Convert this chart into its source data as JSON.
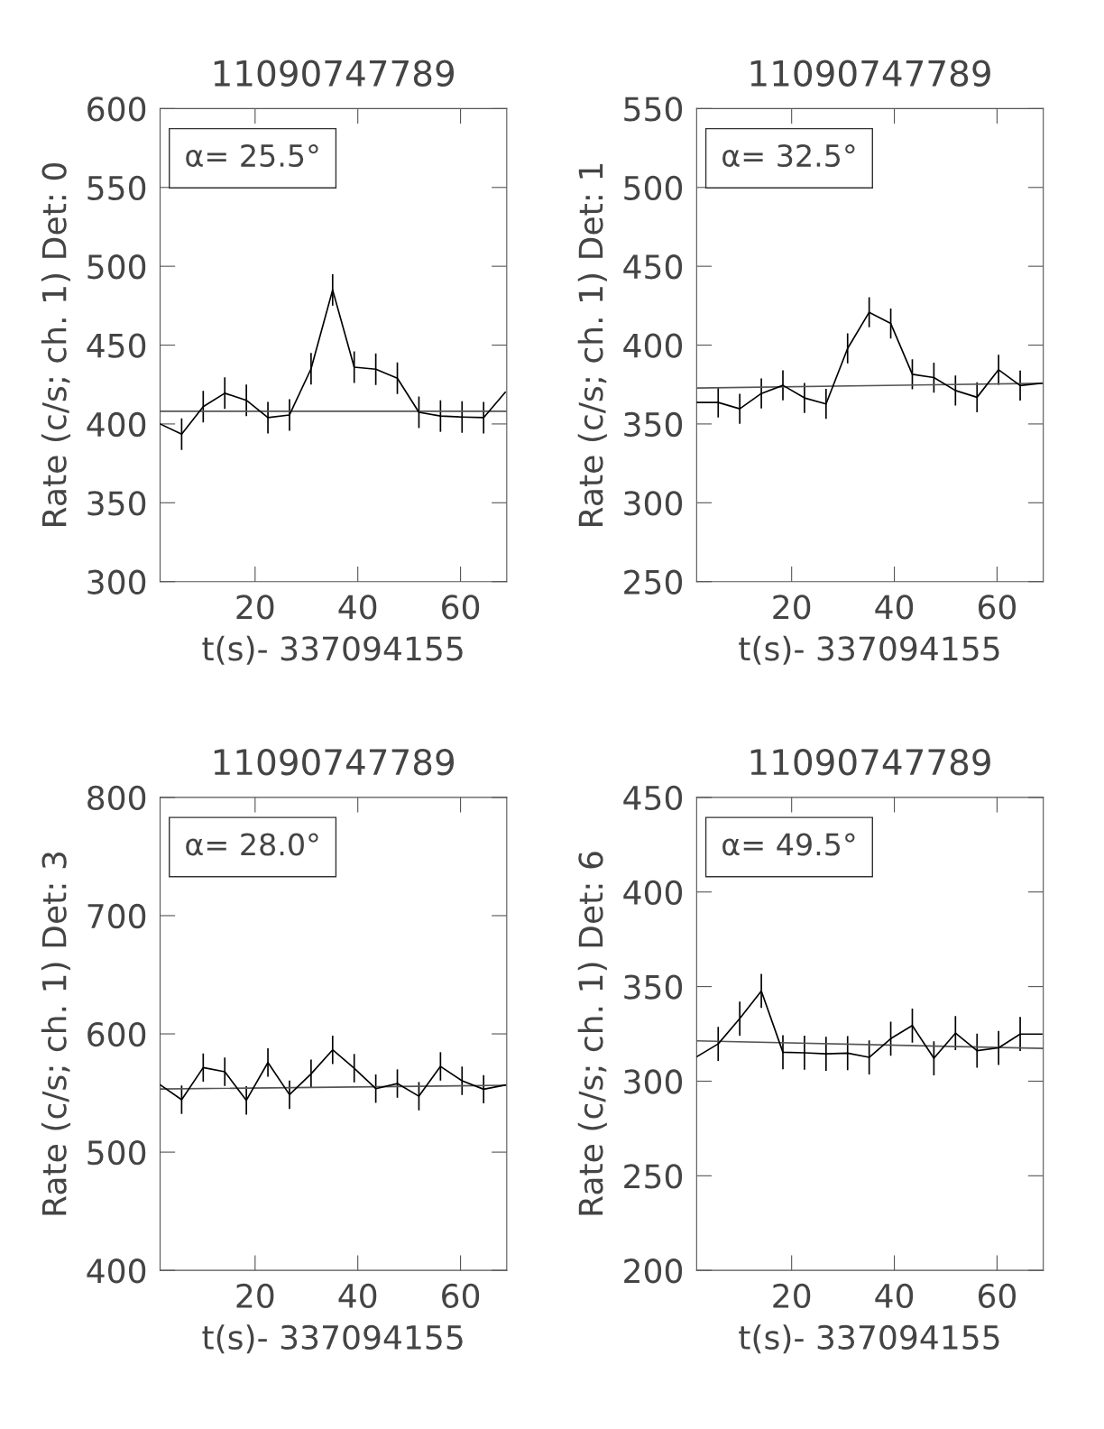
{
  "chart_data": [
    {
      "type": "line",
      "title": "11090747789",
      "xlabel": "t(s)- 337094155",
      "ylabel": "Rate (c/s; ch. 1) Det: 0",
      "annotations": [
        "α= 25.5°"
      ],
      "xlim": [
        1.5,
        69
      ],
      "xticks": [
        20,
        40,
        60
      ],
      "ylim": [
        300,
        600
      ],
      "yticks": [
        300,
        350,
        400,
        450,
        500,
        550,
        600
      ],
      "grid": false,
      "marker": "none",
      "line_style": "solid",
      "series": [
        {
          "color": "#000000",
          "x": [
            1.5,
            5.7,
            9.9,
            14.1,
            18.3,
            22.5,
            26.7,
            30.9,
            35.1,
            39.3,
            43.5,
            47.7,
            51.9,
            56.1,
            60.3,
            64.5,
            68.7
          ],
          "values": [
            400,
            393.5,
            411,
            419.5,
            415,
            404,
            405.7,
            435,
            485,
            436,
            434.7,
            429,
            407.4,
            405,
            404.4,
            404,
            420
          ],
          "errors": [
            null,
            10,
            10,
            10,
            10,
            10,
            10,
            10,
            10,
            10,
            10,
            10,
            10,
            10,
            10,
            10,
            null
          ]
        },
        {
          "color": "#555555",
          "x": [
            1.5,
            69
          ],
          "values": [
            408,
            408
          ]
        }
      ]
    },
    {
      "type": "line",
      "title": "11090747789",
      "xlabel": "t(s)- 337094155",
      "ylabel": "Rate (c/s; ch. 1) Det: 1",
      "annotations": [
        "α= 32.5°"
      ],
      "xlim": [
        1.5,
        69
      ],
      "xticks": [
        20,
        40,
        60
      ],
      "ylim": [
        250,
        550
      ],
      "yticks": [
        250,
        300,
        350,
        400,
        450,
        500,
        550
      ],
      "grid": false,
      "marker": "none",
      "line_style": "solid",
      "series": [
        {
          "color": "#000000",
          "x": [
            1.5,
            5.7,
            9.9,
            14.1,
            18.3,
            22.5,
            26.7,
            30.9,
            35.1,
            39.3,
            43.5,
            47.7,
            51.9,
            56.1,
            60.3,
            64.5,
            68.7
          ],
          "values": [
            363.6,
            363.6,
            359.6,
            369.3,
            374.5,
            366.5,
            362.7,
            397.9,
            420.8,
            413.7,
            381.5,
            379.4,
            371.2,
            366.9,
            384.4,
            374.3,
            375.8
          ],
          "errors": [
            null,
            9.5,
            9.5,
            9.5,
            9.5,
            9.5,
            9.5,
            9.5,
            9.5,
            9.5,
            9.5,
            9.5,
            9.5,
            9.5,
            9.5,
            9.5,
            null
          ]
        },
        {
          "color": "#555555",
          "x": [
            1.5,
            69
          ],
          "values": [
            372.8,
            375.8
          ]
        }
      ]
    },
    {
      "type": "line",
      "title": "11090747789",
      "xlabel": "t(s)- 337094155",
      "ylabel": "Rate (c/s; ch. 1) Det: 3",
      "annotations": [
        "α= 28.0°"
      ],
      "xlim": [
        1.5,
        69
      ],
      "xticks": [
        20,
        40,
        60
      ],
      "ylim": [
        400,
        800
      ],
      "yticks": [
        400,
        500,
        600,
        700,
        800
      ],
      "grid": false,
      "marker": "none",
      "line_style": "solid",
      "series": [
        {
          "color": "#000000",
          "x": [
            1.5,
            5.7,
            9.9,
            14.1,
            18.3,
            22.5,
            26.7,
            30.9,
            35.1,
            39.3,
            43.5,
            47.7,
            51.9,
            56.1,
            60.3,
            64.5,
            68.7
          ],
          "values": [
            557,
            544.3,
            571.5,
            568,
            543.8,
            575.8,
            548.6,
            566.2,
            586.5,
            571,
            553.7,
            558,
            547.3,
            572.5,
            560.3,
            553.2,
            556.7
          ],
          "errors": [
            null,
            12,
            12,
            12,
            12,
            12,
            12,
            12,
            12,
            12,
            12,
            12,
            12,
            12,
            12,
            12,
            null
          ]
        },
        {
          "color": "#555555",
          "x": [
            1.5,
            69
          ],
          "values": [
            553.4,
            556.5
          ]
        }
      ]
    },
    {
      "type": "line",
      "title": "11090747789",
      "xlabel": "t(s)- 337094155",
      "ylabel": "Rate (c/s; ch. 1) Det: 6",
      "annotations": [
        "α= 49.5°"
      ],
      "xlim": [
        1.5,
        69
      ],
      "xticks": [
        20,
        40,
        60
      ],
      "ylim": [
        200,
        450
      ],
      "yticks": [
        200,
        250,
        300,
        350,
        400,
        450
      ],
      "grid": false,
      "marker": "none",
      "line_style": "solid",
      "series": [
        {
          "color": "#000000",
          "x": [
            1.5,
            5.7,
            9.9,
            14.1,
            18.3,
            22.5,
            26.7,
            30.9,
            35.1,
            39.3,
            43.5,
            47.7,
            51.9,
            56.1,
            60.3,
            64.5,
            68.7
          ],
          "values": [
            312.9,
            319.7,
            333.1,
            347.7,
            315.3,
            315,
            314.5,
            314.8,
            312.6,
            322.5,
            329.4,
            312.1,
            325.4,
            316.1,
            317.6,
            324.9,
            324.9
          ],
          "errors": [
            null,
            9,
            9,
            9,
            9,
            9,
            9,
            9,
            9,
            9,
            9,
            9,
            9,
            9,
            9,
            9,
            null
          ]
        },
        {
          "color": "#555555",
          "x": [
            1.5,
            69
          ],
          "values": [
            321.3,
            317.3
          ]
        }
      ]
    }
  ]
}
